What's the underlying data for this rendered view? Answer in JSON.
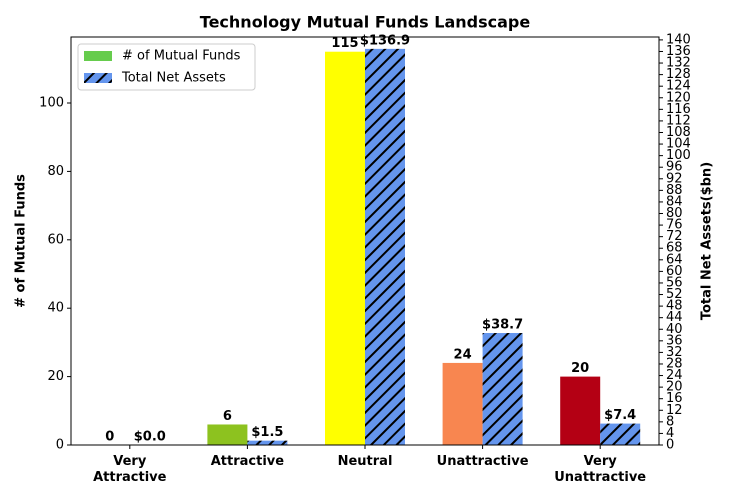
{
  "chart_data": {
    "type": "bar",
    "title": "Technology Mutual Funds Landscape",
    "categories": [
      "Very\nAttractive",
      "Attractive",
      "Neutral",
      "Unattractive",
      "Very\nUnattractive"
    ],
    "series": [
      {
        "name": "# of Mutual Funds",
        "color": "#66cc4d",
        "colors": [
          "#2e8b1e",
          "#8dc21f",
          "#ffff00",
          "#f88650",
          "#b40014"
        ],
        "values": [
          0,
          6,
          115,
          24,
          20
        ]
      },
      {
        "name": "Total Net Assets",
        "color": "#6495ed",
        "hatch": true,
        "axis": "y2",
        "values": [
          0.0,
          1.5,
          136.9,
          38.7,
          7.4
        ],
        "value_labels": [
          "$0.0",
          "$1.5",
          "$136.9",
          "$38.7",
          "$7.4"
        ]
      }
    ],
    "ylabel": "# of Mutual Funds",
    "y2label": "Total Net Assets($bn)",
    "ylim": [
      0,
      119.3
    ],
    "yticks": [
      0,
      20,
      40,
      60,
      80,
      100
    ],
    "y2lim": [
      0,
      141
    ],
    "y2ticks": [
      0,
      4,
      8,
      12,
      16,
      20,
      24,
      28,
      32,
      36,
      40,
      44,
      48,
      52,
      56,
      60,
      64,
      68,
      72,
      76,
      80,
      84,
      88,
      92,
      96,
      100,
      104,
      108,
      112,
      116,
      120,
      124,
      128,
      132,
      136,
      140
    ],
    "legend": "upper left"
  }
}
